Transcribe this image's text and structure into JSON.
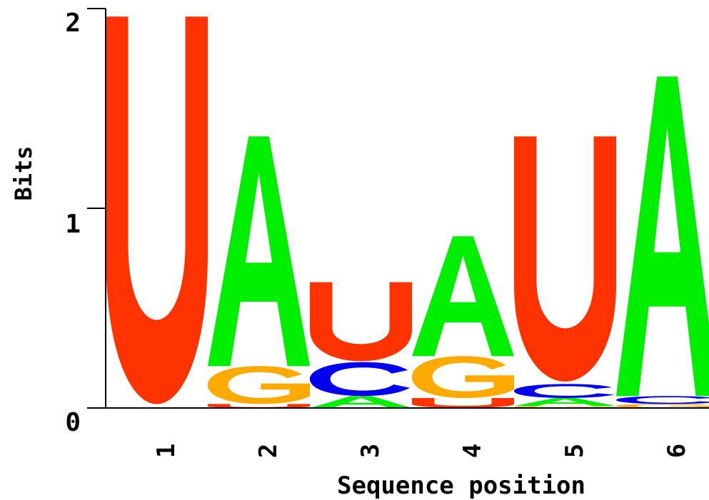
{
  "chart_data": {
    "type": "sequence-logo",
    "ylabel": "Bits",
    "xlabel": "Sequence position",
    "ylim": [
      0,
      2
    ],
    "yticks": [
      "0",
      "1",
      "2"
    ],
    "positions": [
      "1",
      "2",
      "3",
      "4",
      "5",
      "6"
    ],
    "stacks": [
      {
        "position": "1",
        "letters": [
          {
            "letter": "U",
            "bits": 1.96
          }
        ]
      },
      {
        "position": "2",
        "letters": [
          {
            "letter": "U",
            "bits": 0.02
          },
          {
            "letter": "G",
            "bits": 0.19
          },
          {
            "letter": "A",
            "bits": 1.15
          }
        ]
      },
      {
        "position": "3",
        "letters": [
          {
            "letter": "A",
            "bits": 0.06
          },
          {
            "letter": "C",
            "bits": 0.17
          },
          {
            "letter": "U",
            "bits": 0.4
          }
        ]
      },
      {
        "position": "4",
        "letters": [
          {
            "letter": "U",
            "bits": 0.05
          },
          {
            "letter": "G",
            "bits": 0.21
          },
          {
            "letter": "A",
            "bits": 0.6
          }
        ]
      },
      {
        "position": "5",
        "letters": [
          {
            "letter": "G",
            "bits": 0.01
          },
          {
            "letter": "A",
            "bits": 0.04
          },
          {
            "letter": "C",
            "bits": 0.07
          },
          {
            "letter": "U",
            "bits": 1.24
          }
        ]
      },
      {
        "position": "6",
        "letters": [
          {
            "letter": "G",
            "bits": 0.02
          },
          {
            "letter": "C",
            "bits": 0.04
          },
          {
            "letter": "A",
            "bits": 1.6
          }
        ]
      }
    ],
    "colors": {
      "U": "#ff3300",
      "A": "#00ee00",
      "G": "#ffaa00",
      "C": "#0000ee"
    }
  }
}
